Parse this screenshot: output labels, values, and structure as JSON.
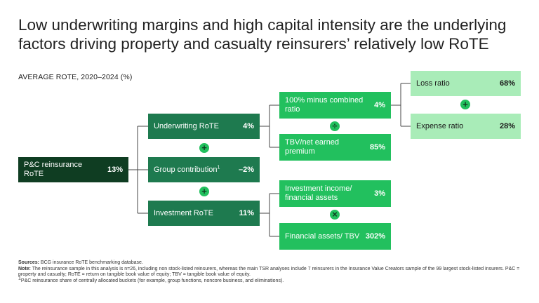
{
  "title": "Low underwriting margins and high capital intensity are the underlying factors driving property and casualty reinsurers’ relatively low RoTE",
  "subtitle": "AVERAGE ROTE, 2020–2024 (%)",
  "root": {
    "label": "P&C reinsurance RoTE",
    "value": "13%"
  },
  "level1": [
    {
      "label": "Underwriting RoTE",
      "value": "4%"
    },
    {
      "label": "Group contribution",
      "sup": "1",
      "value": "–2%"
    },
    {
      "label": "Investment RoTE",
      "value": "11%"
    }
  ],
  "level2": [
    {
      "label": "100% minus combined ratio",
      "value": "4%"
    },
    {
      "label": "TBV/net earned premium",
      "value": "85%"
    },
    {
      "label": "Investment income/ financial assets",
      "value": "3%"
    },
    {
      "label": "Financial assets/ TBV",
      "value": "302%"
    }
  ],
  "level3": [
    {
      "label": "Loss ratio",
      "value": "68%"
    },
    {
      "label": "Expense ratio",
      "value": "28%"
    }
  ],
  "operators": {
    "plus": "+",
    "divide": "÷",
    "times": "×"
  },
  "footnotes": {
    "sources_label": "Sources:",
    "sources_text": " BCG insurance RoTE benchmarking database.",
    "note_label": "Note:",
    "note_text": " The reinsurance sample in this analysis is n=26, including non stock-listed reinsurers, whereas the main TSR analyses include 7 reinsurers in the Insurance Value Creators sample of the 99 largest stock-listed insurers. P&C = property and casualty; RoTE = return on tangible book value of equity; TBV = tangible book value of equity.",
    "fn1_mark": "1",
    "fn1_text": "P&C reinsurance share of centrally allocated buckets (for example, group functions, noncore business, and eliminations)."
  },
  "colors": {
    "dark": "#0f3d22",
    "mid": "#1e7a4f",
    "bright": "#22c05e",
    "light": "#a9ecb8"
  }
}
